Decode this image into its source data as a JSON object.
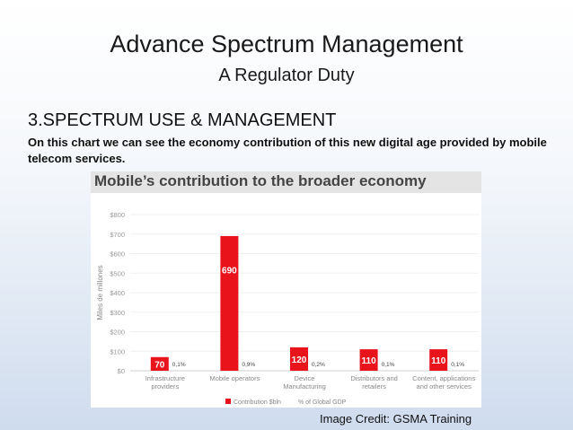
{
  "slide": {
    "title": "Advance Spectrum Management",
    "subtitle": "A Regulator Duty",
    "section_heading": "3.SPECTRUM USE & MANAGEMENT",
    "description": "On this chart we can see the economy contribution of this new digital age provided by mobile telecom services.",
    "image_credit": "Image Credit: GSMA Training"
  },
  "chart_data": {
    "type": "bar",
    "title": "Mobile’s contribution to the broader economy",
    "ylabel": "Miles de millones",
    "ylim": [
      0,
      800
    ],
    "yticks": [
      "$0",
      "$100",
      "$200",
      "$300",
      "$400",
      "$500",
      "$600",
      "$700",
      "$800"
    ],
    "categories": [
      [
        "Infrastructure",
        "providers"
      ],
      [
        "Mobile operators"
      ],
      [
        "Device",
        "Manufacturing"
      ],
      [
        "Distributors and",
        "retailers"
      ],
      [
        "Content, applications",
        "and other services"
      ]
    ],
    "series": [
      {
        "name": "Contribution $bln",
        "values": [
          70,
          690,
          120,
          110,
          110
        ],
        "labels": [
          "70",
          "690",
          "120",
          "110",
          "110"
        ],
        "color": "#e8131b"
      },
      {
        "name": "% of Global GDP",
        "labels": [
          "0,1%",
          "0,9%",
          "0,2%",
          "0,1%",
          "0,1%"
        ]
      }
    ],
    "legend": "bottom"
  }
}
